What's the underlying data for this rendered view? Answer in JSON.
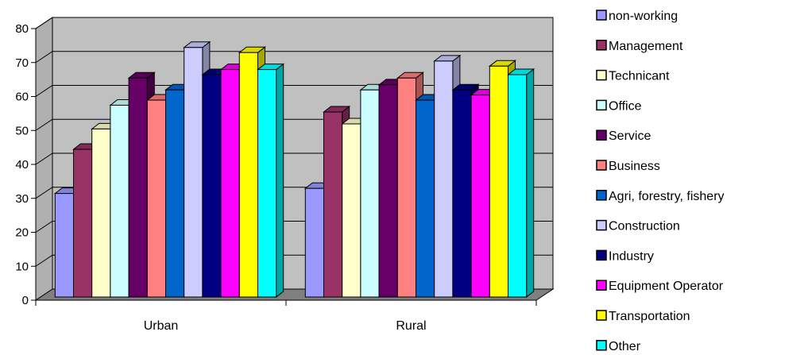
{
  "chart_data": {
    "type": "bar",
    "categories": [
      "Urban",
      "Rural"
    ],
    "ylim": [
      0,
      80
    ],
    "yticks": [
      0,
      10,
      20,
      30,
      40,
      50,
      60,
      70,
      80
    ],
    "ytick_labels": [
      "0",
      "10",
      "20",
      "30",
      "40",
      "50",
      "60",
      "70",
      "80"
    ],
    "grid": true,
    "legend": "right",
    "series": [
      {
        "name": "non-working",
        "color": "#9999ff",
        "values": [
          30.5,
          32
        ]
      },
      {
        "name": "Management",
        "color": "#993366",
        "values": [
          43.5,
          54.5
        ]
      },
      {
        "name": "Technicant",
        "color": "#ffffcc",
        "values": [
          49.5,
          51
        ]
      },
      {
        "name": "Office",
        "color": "#ccffff",
        "values": [
          56.5,
          61
        ]
      },
      {
        "name": "Service",
        "color": "#660066",
        "values": [
          64.5,
          62.5
        ]
      },
      {
        "name": "Business",
        "color": "#ff8080",
        "values": [
          58,
          64.5
        ]
      },
      {
        "name": "Agri, forestry, fishery",
        "color": "#0066cc",
        "values": [
          61,
          58
        ]
      },
      {
        "name": "Construction",
        "color": "#ccccff",
        "values": [
          73.5,
          69.5
        ]
      },
      {
        "name": "Industry",
        "color": "#000080",
        "values": [
          65.5,
          61
        ]
      },
      {
        "name": "Equipment Operator",
        "color": "#ff00ff",
        "values": [
          67,
          59.5
        ]
      },
      {
        "name": "Transportation",
        "color": "#ffff00",
        "values": [
          72,
          68
        ]
      },
      {
        "name": "Other",
        "color": "#00ffff",
        "values": [
          67,
          65.5
        ]
      }
    ],
    "colors": {
      "plot_wall": "#c0c0c0",
      "floor": "#808080",
      "gridline": "#000000"
    }
  }
}
